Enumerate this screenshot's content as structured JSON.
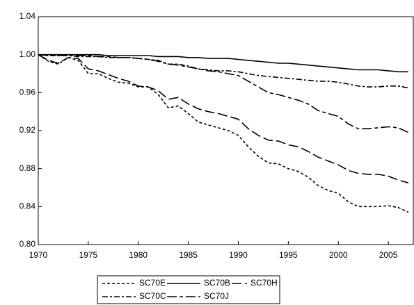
{
  "chart_data": {
    "type": "line",
    "x": [
      1970,
      1971,
      1972,
      1973,
      1974,
      1975,
      1976,
      1977,
      1978,
      1979,
      1980,
      1981,
      1982,
      1983,
      1984,
      1985,
      1986,
      1987,
      1988,
      1989,
      1990,
      1991,
      1992,
      1993,
      1994,
      1995,
      1996,
      1997,
      1998,
      1999,
      2000,
      2001,
      2002,
      2003,
      2004,
      2005,
      2006,
      2007
    ],
    "series": [
      {
        "name": "SC70E",
        "color": "#000000",
        "values": [
          1.0,
          0.993,
          0.99,
          0.997,
          0.994,
          0.98,
          0.98,
          0.975,
          0.971,
          0.97,
          0.966,
          0.966,
          0.958,
          0.944,
          0.946,
          0.938,
          0.929,
          0.926,
          0.923,
          0.92,
          0.915,
          0.903,
          0.893,
          0.886,
          0.885,
          0.88,
          0.877,
          0.871,
          0.862,
          0.857,
          0.854,
          0.845,
          0.84,
          0.84,
          0.84,
          0.841,
          0.839,
          0.834
        ]
      },
      {
        "name": "SC70B",
        "color": "#000000",
        "values": [
          1.0,
          1.0,
          1.0,
          1.0,
          1.0,
          1.0,
          1.0,
          0.999,
          0.999,
          0.999,
          0.999,
          0.999,
          0.998,
          0.998,
          0.998,
          0.997,
          0.997,
          0.996,
          0.996,
          0.996,
          0.995,
          0.994,
          0.993,
          0.992,
          0.991,
          0.991,
          0.99,
          0.989,
          0.988,
          0.987,
          0.986,
          0.985,
          0.984,
          0.984,
          0.984,
          0.983,
          0.982,
          0.982
        ]
      },
      {
        "name": "SC70H",
        "color": "#000000",
        "values": [
          1.0,
          0.994,
          0.991,
          0.997,
          0.996,
          0.985,
          0.983,
          0.979,
          0.975,
          0.972,
          0.967,
          0.966,
          0.962,
          0.953,
          0.955,
          0.948,
          0.943,
          0.94,
          0.938,
          0.935,
          0.932,
          0.922,
          0.915,
          0.91,
          0.909,
          0.905,
          0.903,
          0.898,
          0.892,
          0.888,
          0.884,
          0.878,
          0.875,
          0.874,
          0.874,
          0.872,
          0.868,
          0.865
        ]
      },
      {
        "name": "SC70C",
        "color": "#000000",
        "values": [
          1.0,
          0.999,
          0.999,
          0.999,
          0.998,
          0.998,
          0.998,
          0.997,
          0.997,
          0.997,
          0.996,
          0.995,
          0.994,
          0.99,
          0.99,
          0.988,
          0.985,
          0.984,
          0.983,
          0.983,
          0.982,
          0.98,
          0.978,
          0.977,
          0.976,
          0.975,
          0.974,
          0.973,
          0.972,
          0.972,
          0.971,
          0.969,
          0.967,
          0.966,
          0.966,
          0.967,
          0.967,
          0.965
        ]
      },
      {
        "name": "SC70J",
        "color": "#000000",
        "values": [
          1.0,
          0.999,
          0.999,
          0.999,
          0.999,
          0.999,
          0.998,
          0.998,
          0.997,
          0.997,
          0.996,
          0.995,
          0.993,
          0.99,
          0.989,
          0.987,
          0.985,
          0.983,
          0.982,
          0.98,
          0.978,
          0.972,
          0.966,
          0.96,
          0.958,
          0.955,
          0.952,
          0.948,
          0.941,
          0.938,
          0.935,
          0.927,
          0.922,
          0.922,
          0.923,
          0.924,
          0.923,
          0.918
        ]
      }
    ],
    "xlim": [
      1970,
      2007.5
    ],
    "xticks": [
      1970,
      1975,
      1980,
      1985,
      1990,
      1995,
      2000,
      2005
    ],
    "ylim": [
      0.8,
      1.04
    ],
    "yticks": [
      {
        "value": 0.8,
        "label": "0.80"
      },
      {
        "value": 0.84,
        "label": "0.84"
      },
      {
        "value": 0.88,
        "label": "0.88"
      },
      {
        "value": 0.92,
        "label": "0.92"
      },
      {
        "value": 0.96,
        "label": "0.96"
      },
      {
        "value": 1.0,
        "label": "1.00"
      },
      {
        "value": 1.04,
        "label": "1.04"
      }
    ],
    "grid": false
  }
}
